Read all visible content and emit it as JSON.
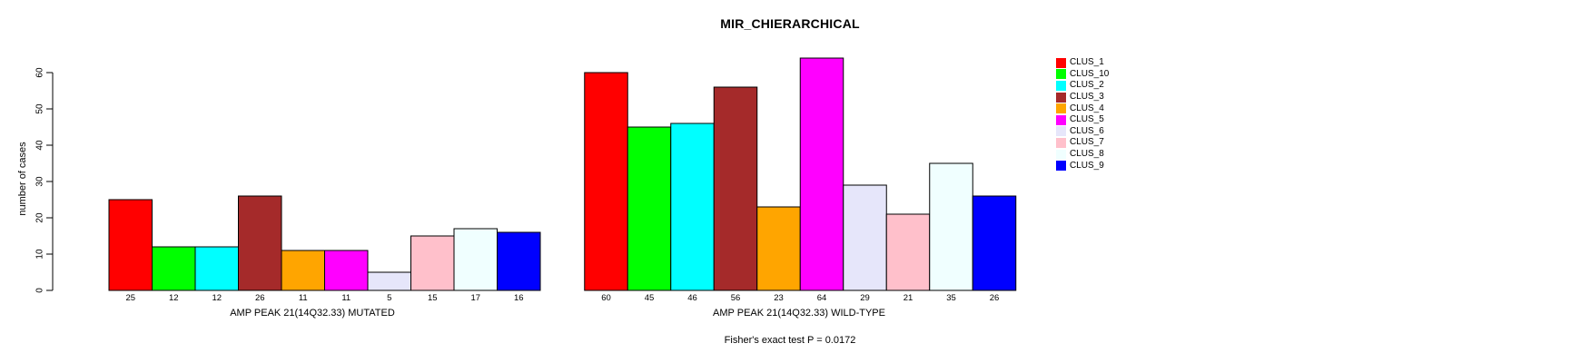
{
  "chart_data": {
    "type": "bar",
    "title": "MIR_CHIERARCHICAL",
    "ylabel": "number of cases",
    "ylim": [
      0,
      64
    ],
    "yticks": [
      0,
      10,
      20,
      30,
      40,
      50,
      60
    ],
    "grid": false,
    "legend_position": "right",
    "categories": [
      "CLUS_1",
      "CLUS_10",
      "CLUS_2",
      "CLUS_3",
      "CLUS_4",
      "CLUS_5",
      "CLUS_6",
      "CLUS_7",
      "CLUS_8",
      "CLUS_9"
    ],
    "colors": [
      "#ff0000",
      "#00ff00",
      "#00ffff",
      "#a52a2a",
      "#ffa500",
      "#ff00ff",
      "#e6e6fa",
      "#ffc0cb",
      "#f0ffff",
      "#0000ff"
    ],
    "groups": [
      {
        "label": "AMP PEAK 21(14Q32.33) MUTATED",
        "values": [
          25,
          12,
          12,
          26,
          11,
          11,
          5,
          15,
          17,
          16
        ]
      },
      {
        "label": "AMP PEAK 21(14Q32.33) WILD-TYPE",
        "values": [
          60,
          45,
          46,
          56,
          23,
          64,
          29,
          21,
          35,
          26
        ]
      }
    ],
    "annotation": "Fisher's exact test P = 0.0172"
  }
}
